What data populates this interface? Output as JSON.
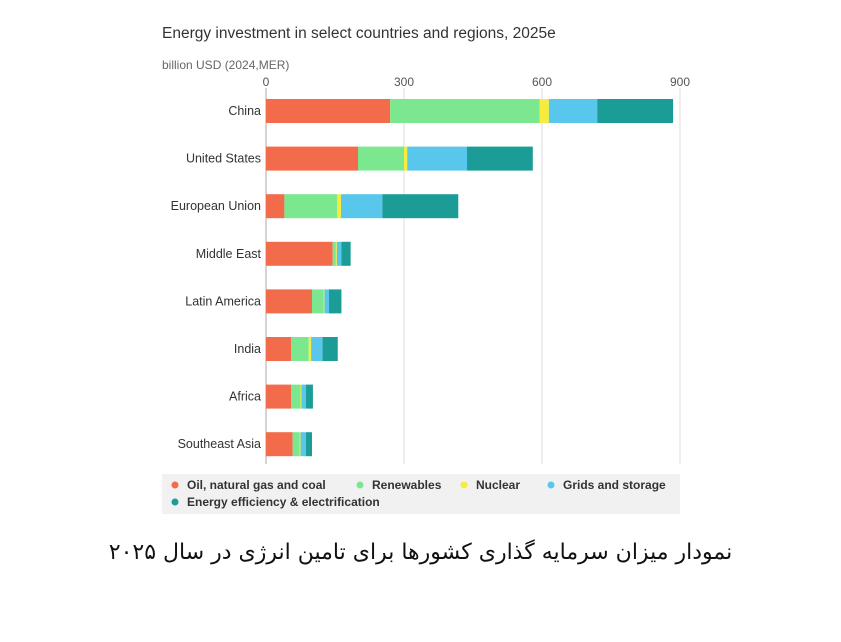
{
  "chart_data": {
    "type": "bar",
    "orientation": "horizontal",
    "stacked": true,
    "title": "Energy investment in select countries and regions, 2025e",
    "units_label": "billion USD (2024,MER)",
    "xlim": [
      0,
      900
    ],
    "xticks": [
      "0",
      "300",
      "600",
      "900"
    ],
    "grid": true,
    "legend_position": "bottom",
    "categories": [
      "China",
      "United States",
      "European Union",
      "Middle East",
      "Latin America",
      "India",
      "Africa",
      "Southeast Asia"
    ],
    "series": [
      {
        "name": "Oil, natural gas and coal",
        "color": "#f26b4a",
        "values": [
          270,
          200,
          40,
          145,
          100,
          55,
          55,
          58
        ]
      },
      {
        "name": "Renewables",
        "color": "#7be88f",
        "values": [
          325,
          100,
          115,
          7,
          25,
          38,
          20,
          15
        ]
      },
      {
        "name": "Nuclear",
        "color": "#f5ec3d",
        "values": [
          20,
          7,
          8,
          2,
          2,
          5,
          2,
          2
        ]
      },
      {
        "name": "Grids and storage",
        "color": "#59c6ec",
        "values": [
          105,
          130,
          90,
          10,
          10,
          25,
          10,
          12
        ]
      },
      {
        "name": "Energy efficiency & electrification",
        "color": "#1b9c96",
        "values": [
          165,
          143,
          165,
          20,
          27,
          33,
          15,
          13
        ]
      }
    ]
  },
  "caption": "نمودار میزان سرمایه گذاری کشورها برای تامین انرژی در سال ۲۰۲۵"
}
